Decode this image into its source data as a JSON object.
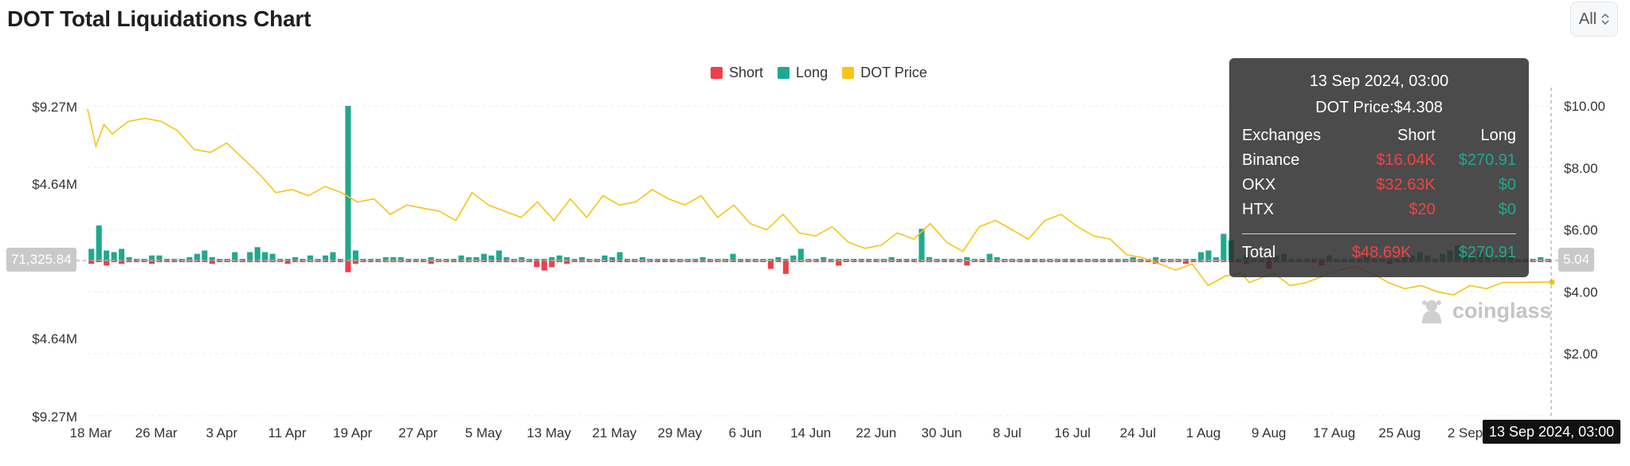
{
  "page": {
    "title": "DOT Total Liquidations Chart",
    "range_select": {
      "value": "All"
    }
  },
  "legend": [
    {
      "label": "Short",
      "color": "#ef3e4a"
    },
    {
      "label": "Long",
      "color": "#20a98e"
    },
    {
      "label": "DOT Price",
      "color": "#f5c518"
    }
  ],
  "tooltip": {
    "time": "13 Sep 2024, 03:00",
    "price": "DOT Price:$4.308",
    "headers": {
      "exchanges": "Exchanges",
      "short": "Short",
      "long": "Long"
    },
    "rows": [
      {
        "exchange": "Binance",
        "short": "$16.04K",
        "long": "$270.91"
      },
      {
        "exchange": "OKX",
        "short": "$32.63K",
        "long": "$0"
      },
      {
        "exchange": "HTX",
        "short": "$20",
        "long": "$0"
      }
    ],
    "total": {
      "label": "Total",
      "short": "$48.69K",
      "long": "$270.91"
    }
  },
  "crosshair_tags": {
    "left": "71,325.84",
    "right": "5.04",
    "x": "13 Sep 2024, 03:00"
  },
  "watermark": "coinglass",
  "chart_data": {
    "type": "bar",
    "title": "DOT Total Liquidations Chart",
    "y_left_ticks": [
      "$9.27M",
      "$4.64M",
      "$4.64M",
      "$9.27M"
    ],
    "y_left_range": [
      -9270000,
      9270000
    ],
    "y_right_ticks": [
      "$10.00",
      "$8.00",
      "$6.00",
      "$4.00",
      "$2.00"
    ],
    "y_right_range": [
      0,
      10
    ],
    "x_ticks": [
      "18 Mar",
      "26 Mar",
      "3 Apr",
      "11 Apr",
      "19 Apr",
      "27 Apr",
      "5 May",
      "13 May",
      "21 May",
      "29 May",
      "6 Jun",
      "14 Jun",
      "22 Jun",
      "30 Jun",
      "8 Jul",
      "16 Jul",
      "24 Jul",
      "1 Aug",
      "9 Aug",
      "17 Aug",
      "25 Aug",
      "2 Sep"
    ],
    "x_range_days": [
      0,
      179
    ],
    "series": [
      {
        "name": "Long",
        "color": "#20a98e",
        "values": [
          0.7,
          2.1,
          0.6,
          0.5,
          0.7,
          0.2,
          0.1,
          0.1,
          0.3,
          0.3,
          0.1,
          0.1,
          0.1,
          0.2,
          0.4,
          0.6,
          0.2,
          0.1,
          0.1,
          0.5,
          0.1,
          0.5,
          0.8,
          0.5,
          0.4,
          0.1,
          0.1,
          0.2,
          0.1,
          0.3,
          0.1,
          0.3,
          0.5,
          0.1,
          9.27,
          0.6,
          0.1,
          0.1,
          0.1,
          0.2,
          0.2,
          0.2,
          0.1,
          0.1,
          0.1,
          0.2,
          0.1,
          0.1,
          0.1,
          0.3,
          0.2,
          0.2,
          0.4,
          0.3,
          0.6,
          0.2,
          0.1,
          0.2,
          0.1,
          0.1,
          0.1,
          0.2,
          0.3,
          0.2,
          0.1,
          0.2,
          0.1,
          0.1,
          0.3,
          0.2,
          0.5,
          0.1,
          0.1,
          0.2,
          0.1,
          0.1,
          0.1,
          0.1,
          0.1,
          0.1,
          0.1,
          0.2,
          0.1,
          0.1,
          0.1,
          0.4,
          0.1,
          0.1,
          0.1,
          0.1,
          0.1,
          0.2,
          0.1,
          0.3,
          0.7,
          0.1,
          0.1,
          0.2,
          0.1,
          0.1,
          0.1,
          0.1,
          0.1,
          0.1,
          0.1,
          0.1,
          0.2,
          0.1,
          0.1,
          0.1,
          1.9,
          0.2,
          0.1,
          0.1,
          0.1,
          0.1,
          0.2,
          0.1,
          0.1,
          0.4,
          0.2,
          0.1,
          0.1,
          0.1,
          0.1,
          0.1,
          0.1,
          0.1,
          0.1,
          0.1,
          0.1,
          0.1,
          0.1,
          0.1,
          0.1,
          0.1,
          0.1,
          0.1,
          0.2,
          0.1,
          0.1,
          0.2,
          0.1,
          0.1,
          0.1,
          0.1,
          0.1,
          0.5,
          0.6,
          0.2,
          1.6,
          1.2,
          0.1,
          0.3,
          0.1,
          0.1,
          0.2,
          0.3,
          0.4,
          0.1,
          0.1,
          0.1,
          0.1,
          0.1,
          0.3,
          0.1,
          0.1,
          0.1,
          0.1,
          0.3,
          0.1,
          0.1,
          0.1,
          0.1,
          0.2,
          0.3,
          0.5,
          0.3,
          0.1,
          0.4,
          0.6,
          0.9,
          0.4,
          0.3,
          0.5,
          0.2,
          0.1,
          0.2,
          0.4,
          0.1,
          0.1,
          0.1,
          0.2,
          0.1
        ]
      },
      {
        "name": "Short",
        "color": "#ef3e4a",
        "values": [
          0.2,
          0.1,
          0.3,
          0.1,
          0.2,
          0.1,
          0.1,
          0.1,
          0.2,
          0.1,
          0.1,
          0.1,
          0.1,
          0.1,
          0.1,
          0.1,
          0.2,
          0.1,
          0.1,
          0.1,
          0.1,
          0.1,
          0.1,
          0.1,
          0.1,
          0.1,
          0.2,
          0.1,
          0.1,
          0.1,
          0.1,
          0.1,
          0.1,
          0.1,
          0.7,
          0.2,
          0.1,
          0.1,
          0.1,
          0.1,
          0.1,
          0.1,
          0.1,
          0.1,
          0.1,
          0.2,
          0.1,
          0.1,
          0.1,
          0.1,
          0.1,
          0.1,
          0.1,
          0.1,
          0.1,
          0.1,
          0.1,
          0.1,
          0.1,
          0.4,
          0.6,
          0.4,
          0.1,
          0.2,
          0.1,
          0.1,
          0.1,
          0.1,
          0.1,
          0.1,
          0.1,
          0.1,
          0.1,
          0.1,
          0.1,
          0.1,
          0.1,
          0.1,
          0.1,
          0.1,
          0.1,
          0.1,
          0.1,
          0.1,
          0.1,
          0.1,
          0.1,
          0.1,
          0.1,
          0.1,
          0.5,
          0.1,
          0.8,
          0.1,
          0.1,
          0.1,
          0.1,
          0.1,
          0.1,
          0.3,
          0.1,
          0.1,
          0.1,
          0.1,
          0.1,
          0.1,
          0.1,
          0.1,
          0.1,
          0.1,
          0.1,
          0.1,
          0.1,
          0.1,
          0.1,
          0.1,
          0.3,
          0.1,
          0.1,
          0.1,
          0.1,
          0.1,
          0.1,
          0.1,
          0.1,
          0.1,
          0.1,
          0.1,
          0.1,
          0.1,
          0.1,
          0.1,
          0.1,
          0.1,
          0.1,
          0.1,
          0.1,
          0.1,
          0.1,
          0.1,
          0.1,
          0.2,
          0.1,
          0.1,
          0.1,
          0.2,
          0.1,
          0.1,
          0.1,
          0.1,
          0.1,
          0.1,
          0.1,
          0.2,
          0.1,
          0.1,
          0.5,
          0.1,
          0.1,
          0.1,
          0.1,
          0.1,
          0.1,
          0.3,
          0.1,
          0.1,
          0.1,
          0.1,
          0.1,
          0.1,
          0.1,
          0.1,
          0.2,
          0.1,
          0.1,
          0.1,
          0.1,
          0.1,
          0.1,
          0.1,
          0.1,
          0.1,
          0.1,
          0.1,
          0.1,
          0.1,
          0.1,
          0.1,
          0.1,
          0.1,
          0.1,
          0.1,
          0.1,
          0.1,
          0.1,
          0.1
        ]
      },
      {
        "name": "DOT Price",
        "color": "#f5c518",
        "x_days": [
          0,
          1,
          2,
          3,
          5,
          7,
          9,
          11,
          13,
          15,
          17,
          19,
          21,
          23,
          25,
          27,
          29,
          31,
          33,
          35,
          37,
          39,
          41,
          43,
          45,
          47,
          49,
          51,
          53,
          55,
          57,
          59,
          61,
          63,
          65,
          67,
          69,
          71,
          73,
          75,
          77,
          79,
          81,
          83,
          85,
          87,
          89,
          91,
          93,
          95,
          97,
          99,
          101,
          103,
          105,
          107,
          109,
          111,
          113,
          115,
          117,
          119,
          121,
          123,
          125,
          127,
          129,
          131,
          133,
          135,
          137,
          139,
          141,
          142,
          143,
          145,
          147,
          149,
          151,
          153,
          155,
          157,
          159,
          161,
          163,
          165,
          167,
          169,
          171,
          173,
          175,
          177,
          179
        ],
        "values": [
          9.9,
          8.7,
          9.4,
          9.1,
          9.5,
          9.6,
          9.5,
          9.2,
          8.6,
          8.5,
          8.8,
          8.3,
          7.8,
          7.2,
          7.3,
          7.1,
          7.4,
          7.2,
          6.9,
          7.0,
          6.5,
          6.8,
          6.7,
          6.6,
          6.3,
          7.2,
          6.8,
          6.6,
          6.4,
          6.9,
          6.3,
          7.0,
          6.4,
          7.1,
          6.8,
          6.9,
          7.3,
          7.0,
          6.8,
          7.1,
          6.4,
          6.8,
          6.2,
          6.0,
          6.5,
          5.9,
          5.8,
          6.1,
          5.6,
          5.4,
          5.5,
          5.9,
          5.7,
          6.2,
          5.6,
          5.3,
          6.1,
          6.3,
          6.0,
          5.7,
          6.3,
          6.5,
          6.1,
          5.8,
          5.7,
          5.2,
          5.1,
          4.9,
          4.7,
          4.9,
          4.2,
          4.5,
          4.6,
          4.3,
          4.4,
          4.6,
          4.2,
          4.3,
          4.5,
          4.7,
          4.8,
          4.6,
          4.3,
          4.1,
          4.2,
          4.0,
          3.9,
          4.2,
          4.1,
          4.3,
          4.3,
          4.31,
          4.308
        ]
      }
    ],
    "legend_position": "top-center",
    "grid": true
  }
}
